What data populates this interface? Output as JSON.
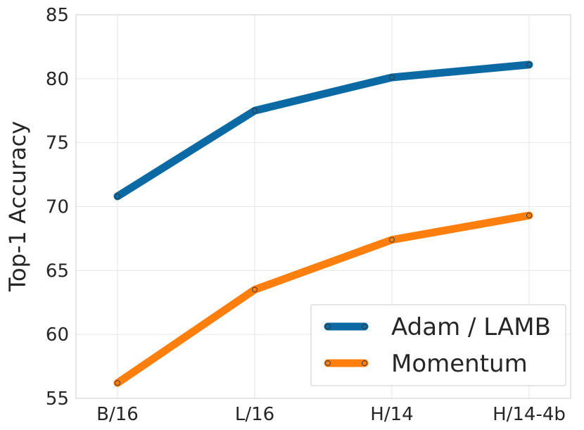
{
  "chart_data": {
    "type": "line",
    "categories": [
      "B/16",
      "L/16",
      "H/14",
      "H/14-4b"
    ],
    "series": [
      {
        "name": "Adam / LAMB",
        "values": [
          70.8,
          77.5,
          80.1,
          81.1
        ],
        "color": "#0b6aa3"
      },
      {
        "name": "Momentum",
        "values": [
          56.2,
          63.5,
          67.4,
          69.3
        ],
        "color": "#ff7f0e"
      }
    ],
    "xlabel": "",
    "ylabel": "Top-1 Accuracy",
    "ylim": [
      55,
      85
    ],
    "yticks": [
      "55",
      "60",
      "65",
      "70",
      "75",
      "80",
      "85"
    ],
    "grid": true,
    "legend_position": "bottom-right"
  }
}
